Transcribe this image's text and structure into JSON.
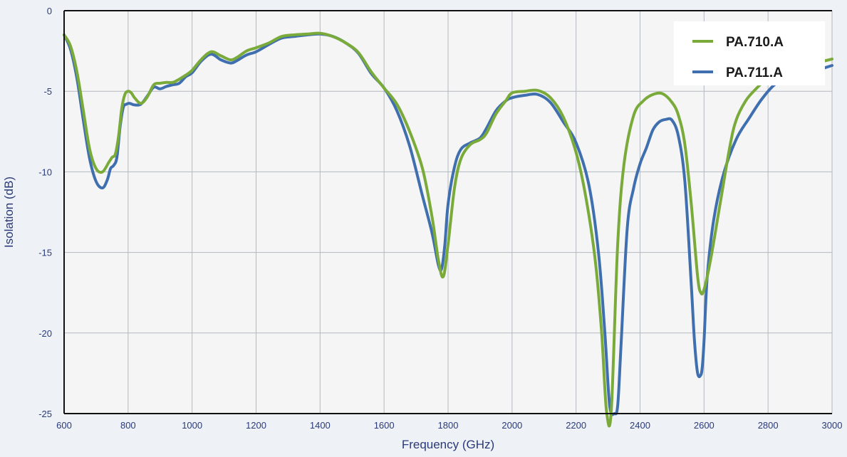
{
  "chart_data": {
    "type": "line",
    "title": "",
    "xlabel": "Frequency (GHz)",
    "ylabel": "Isolation (dB)",
    "xlim": [
      600,
      3000
    ],
    "ylim": [
      -25,
      0
    ],
    "xticks": [
      600,
      800,
      1000,
      1200,
      1400,
      1600,
      1800,
      2000,
      2200,
      2400,
      2600,
      2800,
      3000
    ],
    "yticks": [
      0,
      -5,
      -10,
      -15,
      -20,
      -25
    ],
    "grid": true,
    "legend_position": "top-right",
    "series": [
      {
        "name": "PA.710.A",
        "color": "#7aaa3a",
        "x": [
          600,
          620,
          640,
          660,
          680,
          700,
          720,
          740,
          750,
          760,
          770,
          780,
          790,
          800,
          810,
          820,
          840,
          860,
          880,
          900,
          920,
          940,
          960,
          980,
          1000,
          1030,
          1060,
          1090,
          1120,
          1140,
          1170,
          1200,
          1240,
          1280,
          1320,
          1360,
          1400,
          1440,
          1480,
          1520,
          1560,
          1600,
          1640,
          1680,
          1720,
          1750,
          1770,
          1785,
          1800,
          1820,
          1840,
          1870,
          1900,
          1920,
          1950,
          1980,
          2000,
          2040,
          2080,
          2120,
          2160,
          2200,
          2230,
          2260,
          2280,
          2295,
          2310,
          2330,
          2350,
          2380,
          2410,
          2440,
          2470,
          2500,
          2520,
          2540,
          2560,
          2580,
          2590,
          2600,
          2620,
          2650,
          2680,
          2700,
          2730,
          2760,
          2790,
          2820,
          2860,
          2900,
          2950,
          3000
        ],
        "y": [
          -1.5,
          -2.2,
          -3.8,
          -6.2,
          -8.6,
          -9.8,
          -10.0,
          -9.4,
          -9.1,
          -8.9,
          -7.8,
          -6.1,
          -5.2,
          -5.0,
          -5.1,
          -5.4,
          -5.75,
          -5.35,
          -4.6,
          -4.5,
          -4.45,
          -4.45,
          -4.25,
          -4.0,
          -3.7,
          -3.0,
          -2.55,
          -2.8,
          -3.05,
          -2.9,
          -2.5,
          -2.3,
          -2.0,
          -1.6,
          -1.5,
          -1.45,
          -1.4,
          -1.6,
          -2.0,
          -2.6,
          -3.8,
          -4.8,
          -5.8,
          -7.5,
          -9.8,
          -12.8,
          -15.5,
          -16.5,
          -14.5,
          -11.0,
          -9.2,
          -8.3,
          -8.0,
          -7.6,
          -6.4,
          -5.6,
          -5.1,
          -5.0,
          -4.95,
          -5.4,
          -6.6,
          -8.8,
          -11.5,
          -15.5,
          -20.0,
          -24.8,
          -24.8,
          -14.5,
          -9.5,
          -6.5,
          -5.6,
          -5.2,
          -5.15,
          -5.7,
          -6.5,
          -8.3,
          -12.0,
          -16.5,
          -17.5,
          -17.3,
          -15.5,
          -12.0,
          -8.5,
          -6.8,
          -5.6,
          -4.9,
          -4.35,
          -4.1,
          -3.7,
          -3.5,
          -3.25,
          -3.0
        ]
      },
      {
        "name": "PA.711.A",
        "color": "#3f6faf",
        "x": [
          600,
          620,
          640,
          660,
          680,
          700,
          720,
          735,
          745,
          755,
          765,
          775,
          785,
          795,
          805,
          820,
          840,
          860,
          880,
          900,
          920,
          940,
          960,
          980,
          1000,
          1030,
          1060,
          1090,
          1120,
          1140,
          1170,
          1200,
          1240,
          1280,
          1320,
          1360,
          1400,
          1440,
          1480,
          1520,
          1560,
          1600,
          1640,
          1680,
          1720,
          1750,
          1770,
          1780,
          1790,
          1800,
          1820,
          1840,
          1870,
          1900,
          1920,
          1950,
          1980,
          2000,
          2040,
          2080,
          2120,
          2160,
          2200,
          2240,
          2270,
          2290,
          2305,
          2320,
          2330,
          2340,
          2360,
          2380,
          2400,
          2420,
          2440,
          2460,
          2480,
          2500,
          2520,
          2540,
          2560,
          2570,
          2580,
          2590,
          2595,
          2600,
          2610,
          2630,
          2660,
          2700,
          2740,
          2780,
          2820,
          2860,
          2900,
          2950,
          3000
        ],
        "y": [
          -1.5,
          -2.4,
          -4.2,
          -6.8,
          -9.2,
          -10.6,
          -11.0,
          -10.5,
          -9.8,
          -9.6,
          -9.1,
          -7.2,
          -6.0,
          -5.8,
          -5.75,
          -5.85,
          -5.8,
          -5.3,
          -4.75,
          -4.85,
          -4.7,
          -4.6,
          -4.5,
          -4.1,
          -3.85,
          -3.1,
          -2.7,
          -3.05,
          -3.25,
          -3.1,
          -2.75,
          -2.55,
          -2.1,
          -1.7,
          -1.6,
          -1.5,
          -1.45,
          -1.6,
          -2.0,
          -2.65,
          -3.9,
          -4.8,
          -6.2,
          -8.4,
          -11.5,
          -13.8,
          -15.8,
          -16.0,
          -14.5,
          -12.0,
          -9.7,
          -8.6,
          -8.2,
          -7.9,
          -7.3,
          -6.2,
          -5.6,
          -5.4,
          -5.25,
          -5.2,
          -5.7,
          -6.9,
          -8.2,
          -10.8,
          -15.0,
          -20.0,
          -24.5,
          -25.0,
          -24.5,
          -21.0,
          -13.5,
          -11.0,
          -9.5,
          -8.5,
          -7.4,
          -6.9,
          -6.75,
          -6.8,
          -7.8,
          -10.6,
          -17.0,
          -20.5,
          -22.5,
          -22.6,
          -22.0,
          -20.5,
          -16.5,
          -13.0,
          -10.2,
          -8.0,
          -6.7,
          -5.5,
          -4.6,
          -4.2,
          -3.9,
          -3.7,
          -3.4
        ]
      }
    ]
  }
}
